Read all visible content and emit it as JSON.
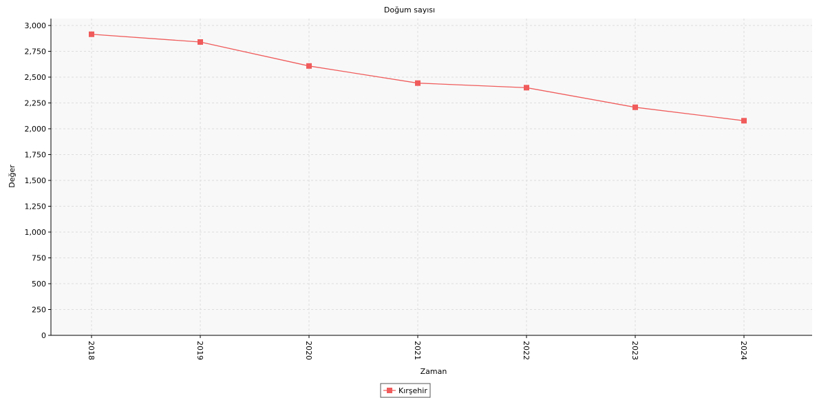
{
  "chart_data": {
    "type": "line",
    "title": "Doğum sayısı",
    "xlabel": "Zaman",
    "ylabel": "Değer",
    "categories": [
      "2018",
      "2019",
      "2020",
      "2021",
      "2022",
      "2023",
      "2024"
    ],
    "ylim": [
      0,
      3000
    ],
    "yticks": [
      "0",
      "250",
      "500",
      "750",
      "1,000",
      "1,250",
      "1,500",
      "1,750",
      "2,000",
      "2,250",
      "2,500",
      "2,750",
      "3,000"
    ],
    "series": [
      {
        "name": "Kırşehir",
        "values": [
          2915,
          2840,
          2608,
          2442,
          2398,
          2208,
          2078
        ]
      }
    ],
    "grid": true,
    "legend": "bottom-center",
    "colors": {
      "series": "#f05b5b",
      "plot_bg": "#f8f8f8",
      "grid": "#dddddd",
      "axis": "#000000"
    }
  }
}
